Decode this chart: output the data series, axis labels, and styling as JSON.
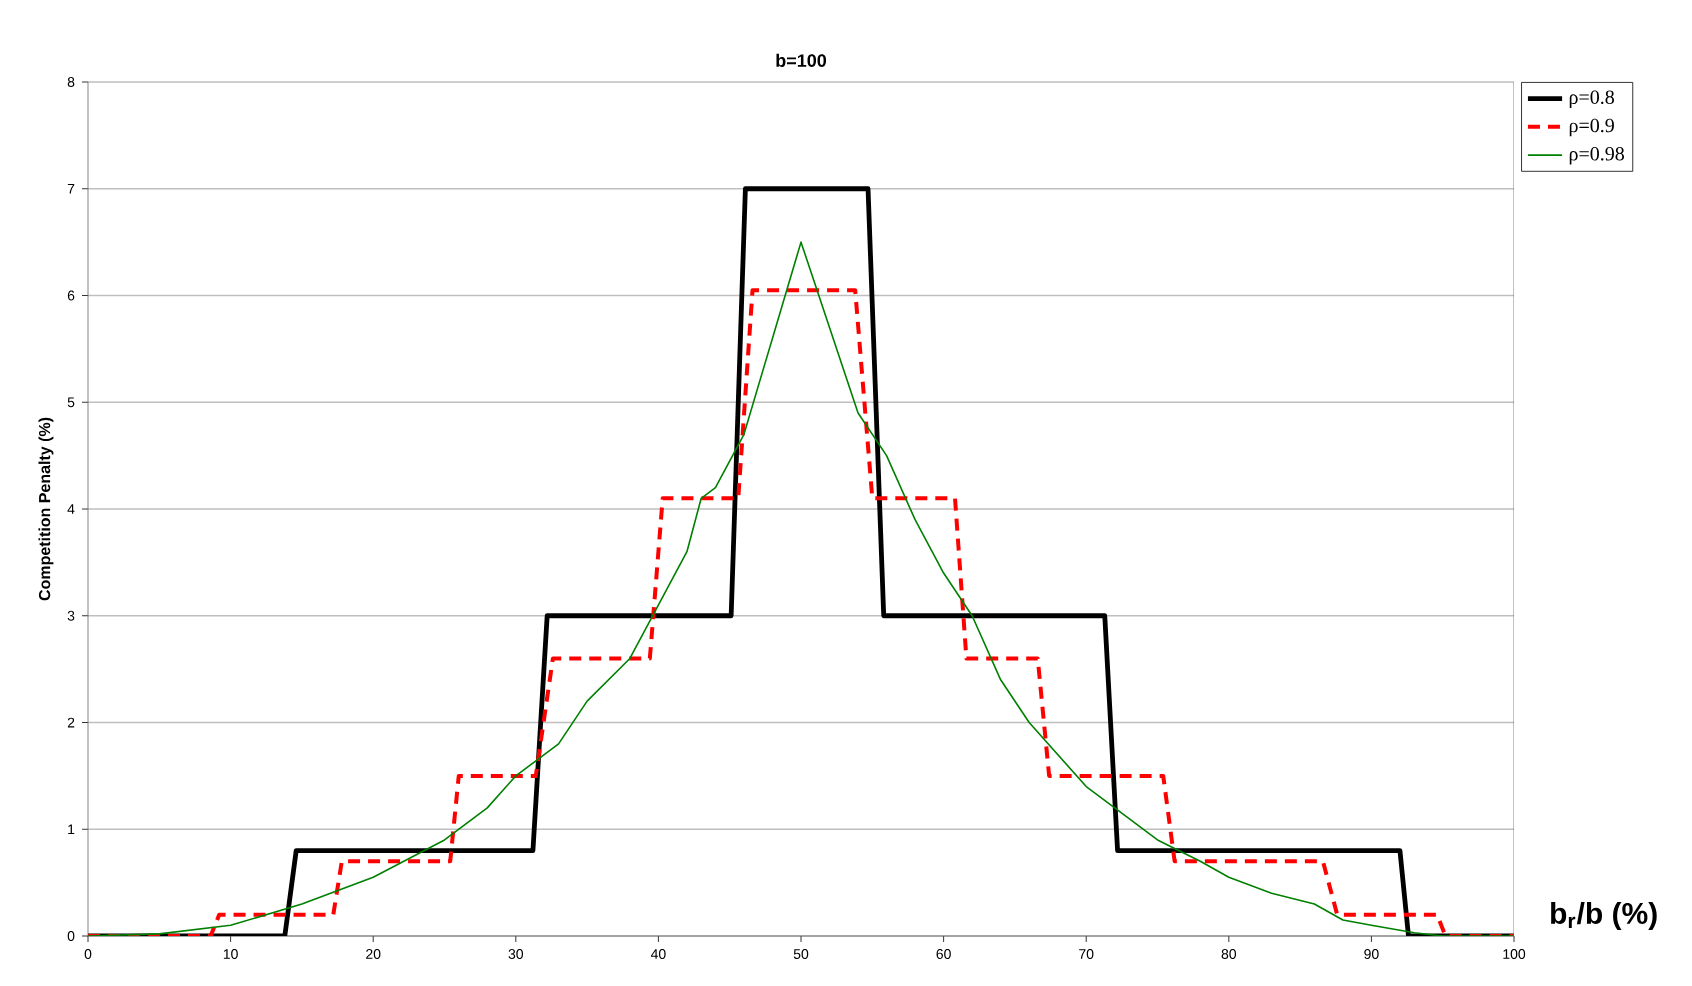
{
  "chart_data": {
    "type": "line",
    "title": "b=100",
    "xlabel": "b$_{r}$/b (%)",
    "ylabel": "Competition Penalty (%)",
    "xlim": [
      0,
      100
    ],
    "xticks": [
      0,
      10,
      20,
      30,
      40,
      50,
      60,
      70,
      80,
      90,
      100
    ],
    "ylim": [
      0,
      8
    ],
    "yticks": [
      0,
      1,
      2,
      3,
      4,
      5,
      6,
      7,
      8
    ],
    "grid": "y",
    "legend": "top right",
    "marker": "none",
    "series": [
      {
        "name": "ρ=0.8",
        "color": "#000000",
        "line_style": "solid",
        "x": [
          0,
          13.8,
          14.6,
          31.2,
          32.2,
          45.1,
          46.1,
          54.7,
          55.8,
          71.3,
          72.2,
          92,
          92.6,
          100
        ],
        "values": [
          0,
          0,
          0.8,
          0.8,
          3,
          3,
          7,
          7,
          3,
          3,
          0.8,
          0.8,
          0,
          0
        ]
      },
      {
        "name": "ρ=0.9",
        "color": "#ff0000",
        "line_style": "dashed",
        "x": [
          0,
          8.6,
          9.2,
          17.2,
          17.8,
          25.4,
          26,
          31.4,
          32.6,
          39.4,
          40.3,
          45.6,
          46.6,
          53.8,
          55,
          60.8,
          61.6,
          66.6,
          67.4,
          75.4,
          76.2,
          86.6,
          87.6,
          94.6,
          95.2,
          100
        ],
        "values": [
          0,
          0,
          0.2,
          0.2,
          0.7,
          0.7,
          1.5,
          1.5,
          2.6,
          2.6,
          4.1,
          4.1,
          6.05,
          6.05,
          4.1,
          4.1,
          2.6,
          2.6,
          1.5,
          1.5,
          0.7,
          0.7,
          0.2,
          0.2,
          0,
          0
        ]
      },
      {
        "name": "ρ=0.98",
        "color": "#008000",
        "line_style": "solid",
        "x": [
          0,
          5,
          10,
          15,
          20,
          25,
          28,
          30,
          33,
          35,
          38,
          40,
          42,
          43,
          44,
          46,
          48,
          50,
          52,
          54,
          56,
          58,
          60,
          62,
          64,
          66,
          68,
          70,
          72,
          75,
          78,
          80,
          83,
          86,
          88,
          90,
          93,
          95,
          100
        ],
        "values": [
          0,
          0.02,
          0.1,
          0.3,
          0.55,
          0.9,
          1.2,
          1.5,
          1.8,
          2.2,
          2.6,
          3.1,
          3.6,
          4.1,
          4.2,
          4.7,
          5.6,
          6.5,
          5.7,
          4.9,
          4.5,
          3.9,
          3.4,
          3,
          2.4,
          2,
          1.7,
          1.4,
          1.2,
          0.9,
          0.7,
          0.55,
          0.4,
          0.3,
          0.15,
          0.1,
          0.03,
          0,
          0
        ]
      }
    ]
  }
}
